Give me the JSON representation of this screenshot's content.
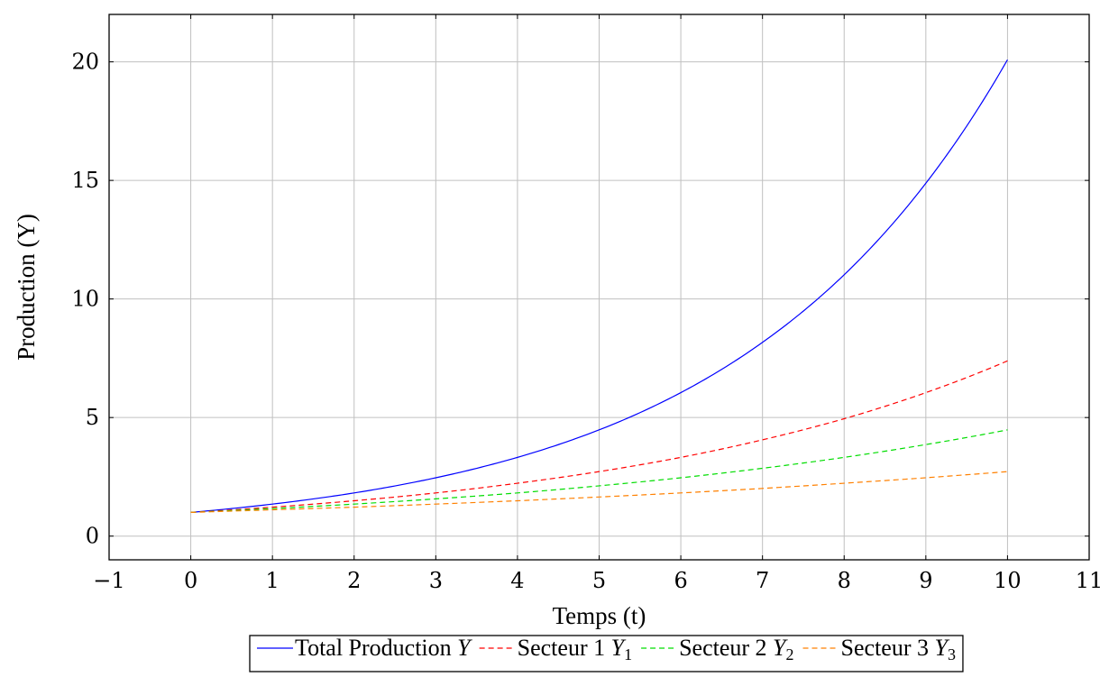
{
  "chart_data": {
    "type": "line",
    "xlabel": "Temps (t)",
    "ylabel": "Production (Y)",
    "xlim": [
      -1,
      11
    ],
    "ylim": [
      -1,
      22
    ],
    "xticks": [
      -1,
      0,
      1,
      2,
      3,
      4,
      5,
      6,
      7,
      8,
      9,
      10,
      11
    ],
    "xtick_labels": [
      "−1",
      "0",
      "1",
      "2",
      "3",
      "4",
      "5",
      "6",
      "7",
      "8",
      "9",
      "10",
      "11"
    ],
    "yticks": [
      0,
      5,
      10,
      15,
      20
    ],
    "ytick_labels": [
      "0",
      "5",
      "10",
      "15",
      "20"
    ],
    "grid": true,
    "legend_position": "bottom",
    "x": [
      0,
      1,
      2,
      3,
      4,
      5,
      6,
      7,
      8,
      9,
      10
    ],
    "series": [
      {
        "name": "Total Production",
        "name_math": "Y",
        "name_sub": "",
        "color": "#0000ff",
        "dash": "solid",
        "values": [
          1.0,
          1.35,
          1.82,
          2.46,
          3.32,
          4.48,
          6.05,
          8.17,
          11.02,
          14.88,
          20.09
        ]
      },
      {
        "name": "Secteur 1",
        "name_math": "Y",
        "name_sub": "1",
        "color": "#ff0000",
        "dash": "dashed",
        "values": [
          1.0,
          1.22,
          1.49,
          1.82,
          2.23,
          2.72,
          3.32,
          4.06,
          4.95,
          6.05,
          7.39
        ]
      },
      {
        "name": "Secteur 2",
        "name_math": "Y",
        "name_sub": "2",
        "color": "#00dd00",
        "dash": "dashed",
        "values": [
          1.0,
          1.16,
          1.35,
          1.57,
          1.82,
          2.12,
          2.46,
          2.86,
          3.32,
          3.86,
          4.48
        ]
      },
      {
        "name": "Secteur 3",
        "name_math": "Y",
        "name_sub": "3",
        "color": "#ff8000",
        "dash": "dashed",
        "values": [
          1.0,
          1.11,
          1.22,
          1.35,
          1.49,
          1.65,
          1.82,
          2.01,
          2.23,
          2.46,
          2.72
        ]
      }
    ]
  }
}
